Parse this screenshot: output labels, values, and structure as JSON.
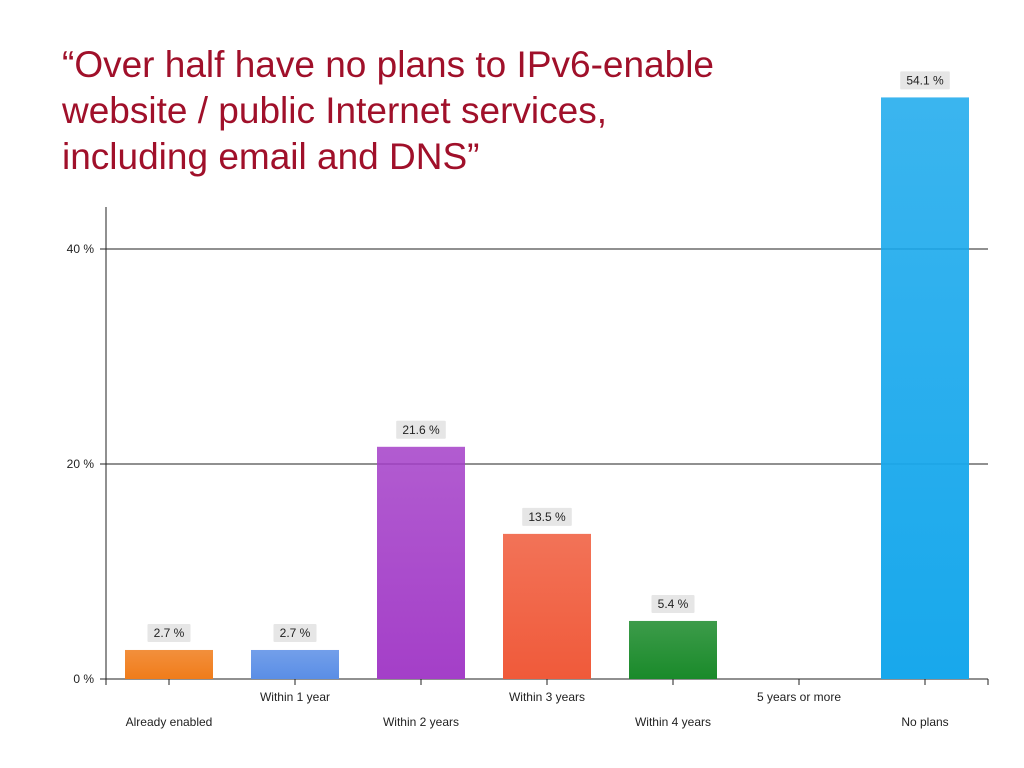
{
  "title_lines": [
    "“Over half have no plans to IPv6-enable",
    "website / public Internet services,",
    "including email and DNS”"
  ],
  "chart_data": {
    "type": "bar",
    "categories": [
      "Already enabled",
      "Within 1 year",
      "Within 2 years",
      "Within 3 years",
      "Within 4 years",
      "5 years or more",
      "No plans"
    ],
    "values": [
      2.7,
      2.7,
      21.6,
      13.5,
      5.4,
      0,
      54.1
    ],
    "data_labels": [
      "2.7 %",
      "2.7 %",
      "21.6 %",
      "13.5 %",
      "5.4 %",
      "",
      "54.1 %"
    ],
    "colors": [
      "#f07c1a",
      "#5a8ee6",
      "#a43fc8",
      "#f05a3a",
      "#1a8a2a",
      "#ffffff",
      "#18a8ec"
    ],
    "yticks": [
      0,
      20,
      40
    ],
    "ytick_labels": [
      "0 %",
      "20 %",
      "40 %"
    ],
    "ylim": [
      0,
      44
    ],
    "grid": true,
    "xlabel": "",
    "ylabel": ""
  }
}
